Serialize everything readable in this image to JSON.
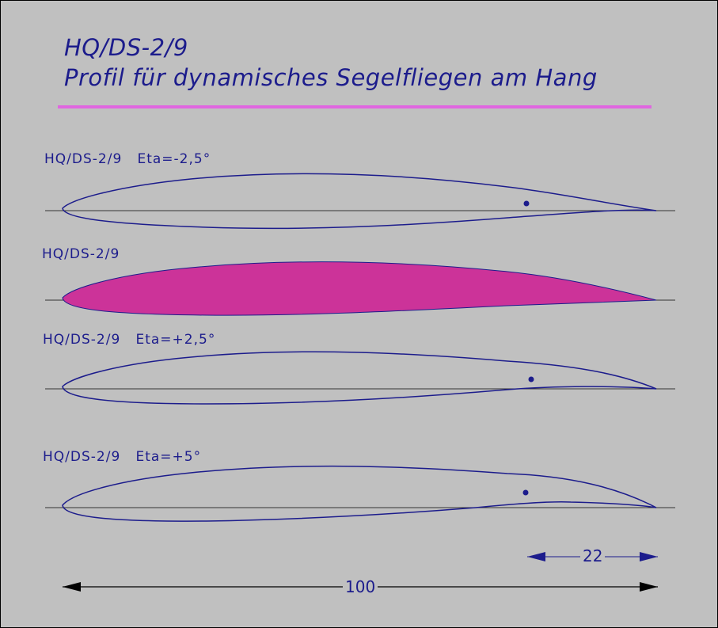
{
  "title": {
    "line1": "HQ/DS-2/9",
    "line2": "Profil für dynamisches Segelfliegen am Hang"
  },
  "profiles": [
    {
      "label": "HQ/DS-2/9   Eta=-2,5°",
      "filled": false
    },
    {
      "label": "HQ/DS-2/9",
      "filled": true
    },
    {
      "label": "HQ/DS-2/9   Eta=+2,5°",
      "filled": false
    },
    {
      "label": "HQ/DS-2/9   Eta=+5°",
      "filled": false
    }
  ],
  "dimensions": {
    "flap": "22",
    "chord": "100"
  },
  "colors": {
    "background": "#c0c0c0",
    "text": "#1c1c8c",
    "accent_line": "#e066e0",
    "fill": "#cc3399",
    "outline": "#1c1c8c"
  }
}
